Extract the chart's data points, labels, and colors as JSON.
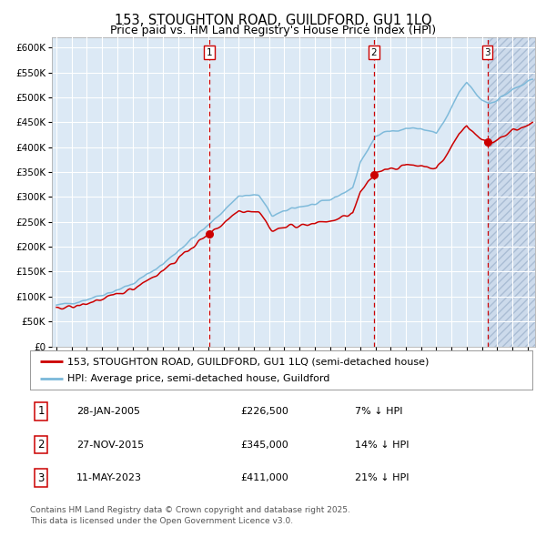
{
  "title": "153, STOUGHTON ROAD, GUILDFORD, GU1 1LQ",
  "subtitle": "Price paid vs. HM Land Registry's House Price Index (HPI)",
  "ylim": [
    0,
    620000
  ],
  "yticks": [
    0,
    50000,
    100000,
    150000,
    200000,
    250000,
    300000,
    350000,
    400000,
    450000,
    500000,
    550000,
    600000
  ],
  "ytick_labels": [
    "£0",
    "£50K",
    "£100K",
    "£150K",
    "£200K",
    "£250K",
    "£300K",
    "£350K",
    "£400K",
    "£450K",
    "£500K",
    "£550K",
    "£600K"
  ],
  "xlim_start": 1994.7,
  "xlim_end": 2026.5,
  "background_color": "#dce9f5",
  "grid_color": "#ffffff",
  "hpi_line_color": "#7ab8d9",
  "price_line_color": "#cc0000",
  "vline_color": "#cc0000",
  "marker_color": "#cc0000",
  "hatch_fill_color": "#ccdaeb",
  "hatch_edge_color": "#aabdd4",
  "sale_dates": [
    2005.07,
    2015.9,
    2023.36
  ],
  "sale_prices": [
    226500,
    345000,
    411000
  ],
  "sale_labels": [
    "1",
    "2",
    "3"
  ],
  "legend_line1": "153, STOUGHTON ROAD, GUILDFORD, GU1 1LQ (semi-detached house)",
  "legend_line2": "HPI: Average price, semi-detached house, Guildford",
  "table_rows": [
    {
      "num": "1",
      "date": "28-JAN-2005",
      "price": "£226,500",
      "hpi": "7% ↓ HPI"
    },
    {
      "num": "2",
      "date": "27-NOV-2015",
      "price": "£345,000",
      "hpi": "14% ↓ HPI"
    },
    {
      "num": "3",
      "date": "11-MAY-2023",
      "price": "£411,000",
      "hpi": "21% ↓ HPI"
    }
  ],
  "footer": "Contains HM Land Registry data © Crown copyright and database right 2025.\nThis data is licensed under the Open Government Licence v3.0.",
  "title_fontsize": 10.5,
  "subtitle_fontsize": 9,
  "tick_fontsize": 7.5,
  "legend_fontsize": 8,
  "table_fontsize": 8,
  "table_num_fontsize": 8.5,
  "footer_fontsize": 6.5
}
